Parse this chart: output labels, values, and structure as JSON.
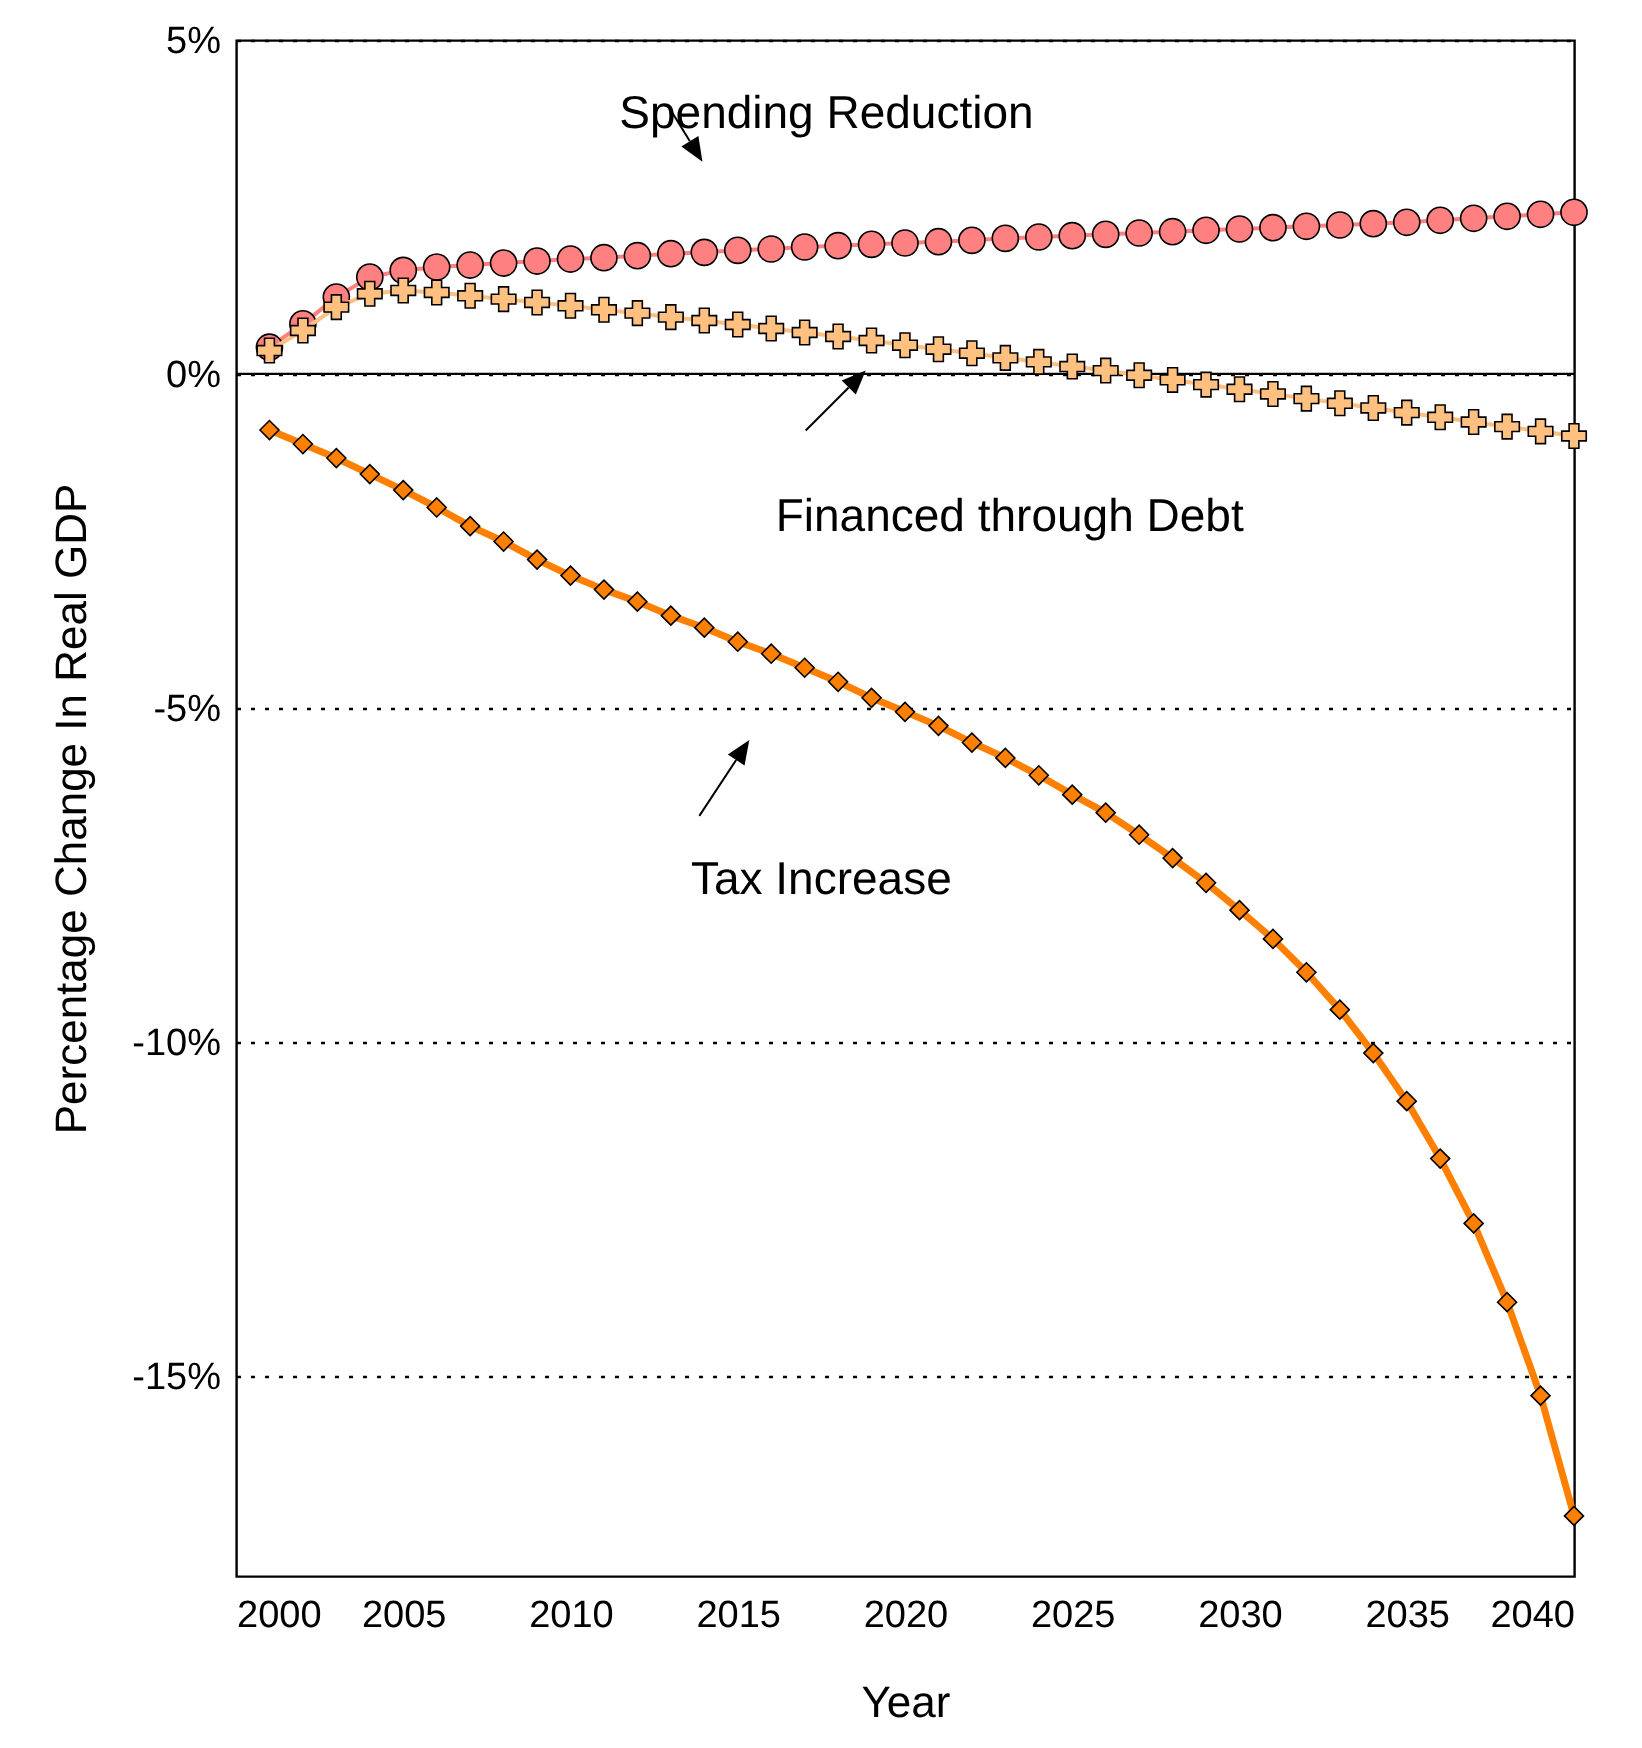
{
  "chart_data": {
    "type": "line",
    "xlabel": "Year",
    "ylabel": "Percentage Change In Real GDP",
    "x": [
      2001,
      2002,
      2003,
      2004,
      2005,
      2006,
      2007,
      2008,
      2009,
      2010,
      2011,
      2012,
      2013,
      2014,
      2015,
      2016,
      2017,
      2018,
      2019,
      2020,
      2021,
      2022,
      2023,
      2024,
      2025,
      2026,
      2027,
      2028,
      2029,
      2030,
      2031,
      2032,
      2033,
      2034,
      2035,
      2036,
      2037,
      2038,
      2039,
      2040
    ],
    "series": [
      {
        "name": "Spending Reduction",
        "color": "#ff8080",
        "marker": "circle",
        "values": [
          0.4,
          0.75,
          1.15,
          1.45,
          1.55,
          1.6,
          1.63,
          1.66,
          1.69,
          1.72,
          1.74,
          1.77,
          1.8,
          1.82,
          1.85,
          1.87,
          1.9,
          1.92,
          1.94,
          1.96,
          1.98,
          2.0,
          2.03,
          2.05,
          2.07,
          2.09,
          2.11,
          2.13,
          2.15,
          2.17,
          2.19,
          2.21,
          2.23,
          2.25,
          2.27,
          2.3,
          2.33,
          2.36,
          2.39,
          2.42
        ]
      },
      {
        "name": "Financed through Debt",
        "color": "#ffc080",
        "marker": "cross",
        "values": [
          0.35,
          0.65,
          1.0,
          1.2,
          1.25,
          1.22,
          1.17,
          1.12,
          1.07,
          1.02,
          0.96,
          0.91,
          0.85,
          0.8,
          0.74,
          0.68,
          0.62,
          0.56,
          0.5,
          0.43,
          0.37,
          0.31,
          0.24,
          0.18,
          0.11,
          0.05,
          -0.02,
          -0.09,
          -0.16,
          -0.23,
          -0.3,
          -0.37,
          -0.44,
          -0.51,
          -0.58,
          -0.65,
          -0.72,
          -0.79,
          -0.86,
          -0.93
        ]
      },
      {
        "name": "Tax Increase",
        "color": "#ff8000",
        "marker": "diamond",
        "values": [
          -0.84,
          -1.05,
          -1.26,
          -1.5,
          -1.74,
          -2.0,
          -2.28,
          -2.51,
          -2.78,
          -3.02,
          -3.23,
          -3.41,
          -3.62,
          -3.8,
          -4.01,
          -4.19,
          -4.4,
          -4.61,
          -4.85,
          -5.06,
          -5.27,
          -5.52,
          -5.75,
          -6.01,
          -6.3,
          -6.57,
          -6.9,
          -7.25,
          -7.62,
          -8.03,
          -8.46,
          -8.96,
          -9.52,
          -10.17,
          -10.89,
          -11.75,
          -12.72,
          -13.9,
          -15.3,
          -17.1
        ]
      }
    ],
    "xlim": [
      2000,
      2040
    ],
    "xticks": [
      2000,
      2005,
      2010,
      2015,
      2020,
      2025,
      2030,
      2035,
      2040
    ],
    "ylim": [
      -18,
      5
    ],
    "yticks": [
      {
        "value": 5,
        "label": "5%"
      },
      {
        "value": 0,
        "label": "0%"
      },
      {
        "value": -5,
        "label": "-5%"
      },
      {
        "value": -10,
        "label": "-10%"
      },
      {
        "value": -15,
        "label": "-15%"
      }
    ],
    "ref_lines": [
      {
        "axis": "y",
        "value": 0,
        "color": "#000000"
      }
    ],
    "grid": "y"
  }
}
